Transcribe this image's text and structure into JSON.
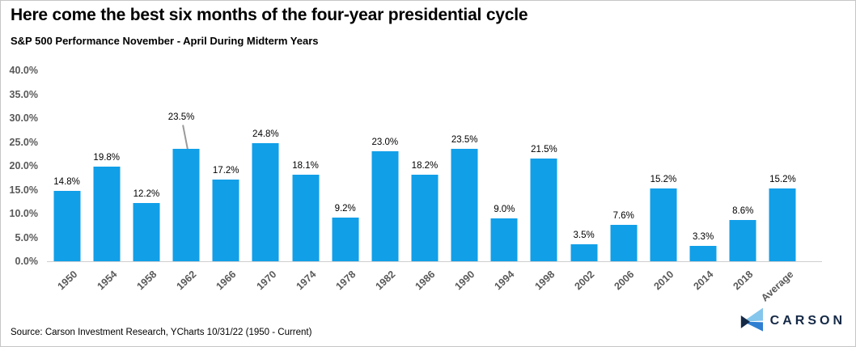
{
  "header": {
    "title": "Here come the best six months of the four-year presidential cycle",
    "subtitle": "S&P 500 Performance November - April During Midterm Years"
  },
  "chart_data": {
    "type": "bar",
    "title": "S&P 500 Performance November - April During Midterm Years",
    "categories": [
      "1950",
      "1954",
      "1958",
      "1962",
      "1966",
      "1970",
      "1974",
      "1978",
      "1982",
      "1986",
      "1990",
      "1994",
      "1998",
      "2002",
      "2006",
      "2010",
      "2014",
      "2018",
      "Average"
    ],
    "values": [
      14.8,
      19.8,
      12.2,
      23.5,
      17.2,
      24.8,
      18.1,
      9.2,
      23.0,
      18.2,
      23.5,
      9.0,
      21.5,
      3.5,
      7.6,
      15.2,
      3.3,
      8.6,
      15.2
    ],
    "data_labels": [
      "14.8%",
      "19.8%",
      "12.2%",
      "23.5%",
      "17.2%",
      "24.8%",
      "18.1%",
      "9.2%",
      "23.0%",
      "18.2%",
      "23.5%",
      "9.0%",
      "21.5%",
      "3.5%",
      "7.6%",
      "15.2%",
      "3.3%",
      "8.6%",
      "15.2%"
    ],
    "y_tick_labels": [
      "0.0%",
      "5.0%",
      "10.0%",
      "15.0%",
      "20.0%",
      "25.0%",
      "30.0%",
      "35.0%",
      "40.0%"
    ],
    "ylim": [
      0,
      40
    ],
    "xlabel": "",
    "ylabel": "",
    "grid": false,
    "legend": false,
    "label_leader_index": 3,
    "bar_color": "#119FE8",
    "axis_label_color": "#595959",
    "baseline_color": "#cfcfcf"
  },
  "footer": {
    "source": "Source: Carson Investment Research, YCharts 10/31/22 (1950 - Current)"
  },
  "logo": {
    "text": "CARSON",
    "navy": "#152946",
    "light_blue": "#85C6EC",
    "mid_blue": "#2E7FD2"
  }
}
